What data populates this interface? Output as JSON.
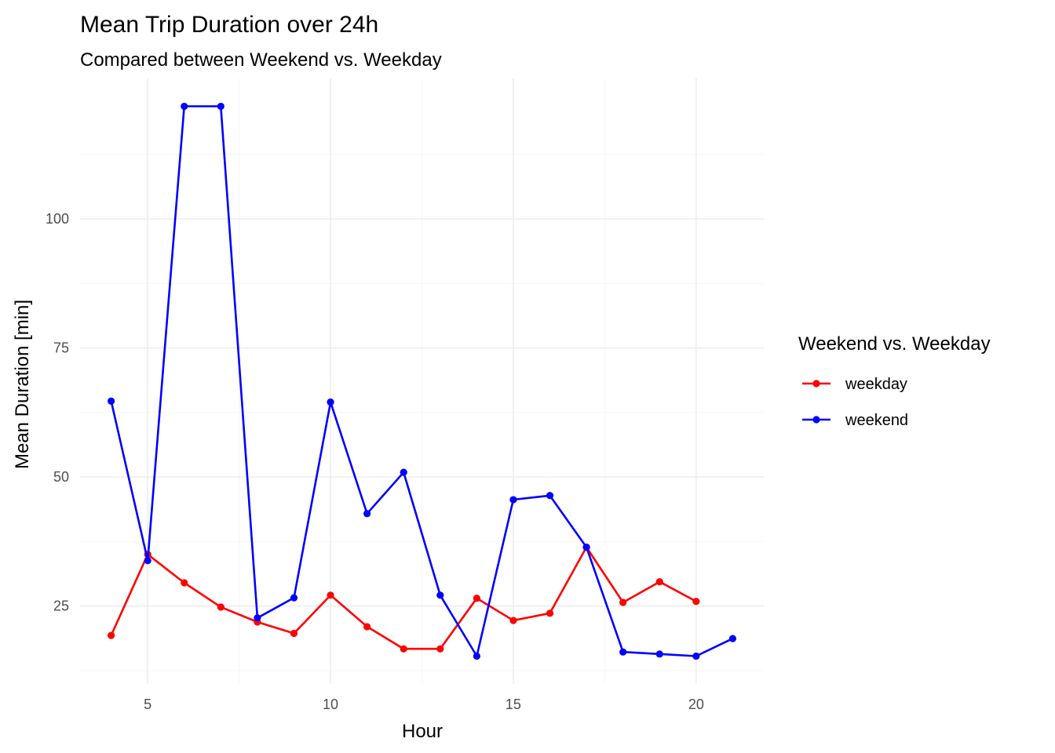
{
  "chart_data": {
    "type": "line",
    "title": "Mean Trip Duration over 24h",
    "subtitle": "Compared between Weekend vs. Weekday",
    "xlabel": "Hour",
    "ylabel": "Mean Duration [min]",
    "xlim": [
      3.15,
      21.85
    ],
    "ylim": [
      9.9,
      127.2
    ],
    "x_ticks": [
      5,
      10,
      15,
      20
    ],
    "y_ticks": [
      25,
      50,
      75,
      100
    ],
    "grid": true,
    "legend": {
      "title": "Weekend vs. Weekday",
      "position": "right"
    },
    "series": [
      {
        "name": "weekday",
        "color": "#ff0000",
        "x": [
          4,
          5,
          6,
          7,
          8,
          9,
          10,
          11,
          12,
          13,
          14,
          15,
          16,
          17,
          18,
          19,
          20
        ],
        "values": [
          19.3,
          35.0,
          29.5,
          24.8,
          21.9,
          19.7,
          27.1,
          21.0,
          16.7,
          16.7,
          26.5,
          22.2,
          23.6,
          36.4,
          25.7,
          29.7,
          25.9
        ]
      },
      {
        "name": "weekend",
        "color": "#0000ff",
        "x": [
          4,
          5,
          6,
          7,
          8,
          9,
          10,
          11,
          12,
          13,
          14,
          15,
          16,
          17,
          18,
          19,
          20,
          21
        ],
        "values": [
          64.7,
          33.8,
          121.8,
          121.8,
          22.7,
          26.6,
          64.5,
          42.9,
          50.9,
          27.1,
          15.3,
          45.6,
          46.4,
          36.4,
          16.1,
          15.7,
          15.3,
          18.7
        ]
      }
    ]
  }
}
